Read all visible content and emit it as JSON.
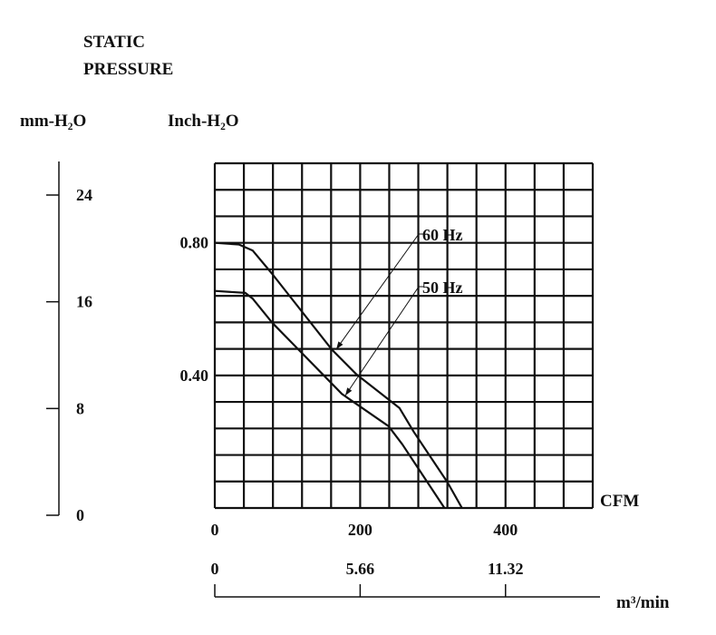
{
  "chart_data": {
    "type": "line",
    "title": [
      "STATIC",
      "PRESSURE"
    ],
    "ylabel_left": "mm-H₂O",
    "ylabel_right": "Inch-H₂O",
    "xlabel": "CFM",
    "xlabel_secondary": "m³/min",
    "xlim": [
      0,
      520
    ],
    "ylim": [
      0,
      1.04
    ],
    "mm_lim": [
      0,
      26
    ],
    "grid": true,
    "x_ticks": [
      {
        "value": 0,
        "label": "0"
      },
      {
        "value": 200,
        "label": "200"
      },
      {
        "value": 400,
        "label": "400"
      }
    ],
    "y_ticks": [
      {
        "value": 0.4,
        "label": "0.40"
      },
      {
        "value": 0.8,
        "label": "0.80"
      }
    ],
    "mm_ticks": [
      {
        "value": 0,
        "label": "0"
      },
      {
        "value": 8,
        "label": "8"
      },
      {
        "value": 16,
        "label": "16"
      },
      {
        "value": 24,
        "label": "24"
      }
    ],
    "m3_ticks": [
      {
        "cfm": 0,
        "label": "0"
      },
      {
        "cfm": 200,
        "label": "5.66"
      },
      {
        "cfm": 400,
        "label": "11.32"
      }
    ],
    "series": [
      {
        "name": "60 Hz",
        "x": [
          0,
          33,
          52,
          79,
          161,
          195,
          254,
          274,
          320,
          340
        ],
        "y": [
          0.8,
          0.795,
          0.777,
          0.706,
          0.478,
          0.403,
          0.302,
          0.229,
          0.078,
          0
        ]
      },
      {
        "name": "50 Hz",
        "x": [
          0,
          42,
          52,
          79,
          175,
          239,
          258,
          316
        ],
        "y": [
          0.655,
          0.649,
          0.632,
          0.559,
          0.344,
          0.247,
          0.192,
          0
        ]
      }
    ],
    "colors": {
      "ink": "#111111",
      "background": "#ffffff"
    }
  }
}
